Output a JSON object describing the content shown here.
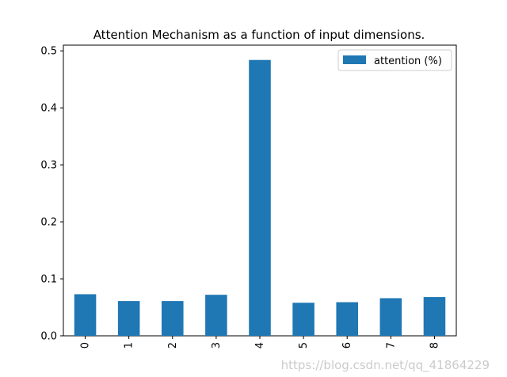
{
  "chart_data": {
    "type": "bar",
    "title": "Attention Mechanism as a function of input dimensions.",
    "categories": [
      "0",
      "1",
      "2",
      "3",
      "4",
      "5",
      "6",
      "7",
      "8"
    ],
    "series": [
      {
        "name": "attention (%)",
        "values": [
          0.073,
          0.061,
          0.061,
          0.072,
          0.484,
          0.058,
          0.059,
          0.066,
          0.068
        ]
      }
    ],
    "xlabel": "",
    "ylabel": "",
    "ylim": [
      0,
      0.51
    ],
    "yticks": [
      0.0,
      0.1,
      0.2,
      0.3,
      0.4,
      0.5
    ],
    "ytick_labels": [
      "0.0",
      "0.1",
      "0.2",
      "0.3",
      "0.4",
      "0.5"
    ],
    "grid": false,
    "legend": "top-right",
    "bar_color": "#1f77b4"
  },
  "watermark": "https://blog.csdn.net/qq_41864229"
}
